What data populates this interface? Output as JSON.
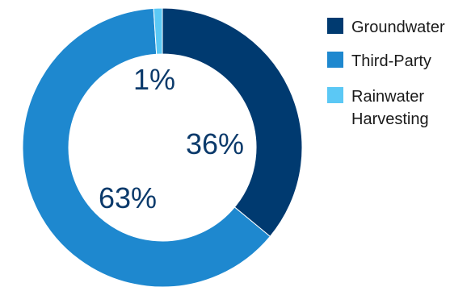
{
  "chart_data": {
    "type": "pie",
    "subtype": "donut",
    "title": "",
    "slices": [
      {
        "name": "Groundwater",
        "value": 36,
        "label": "36%",
        "color": "#003a70"
      },
      {
        "name": "Third-Party",
        "value": 63,
        "label": "63%",
        "color": "#1e88cf"
      },
      {
        "name": "Rainwater Harvesting",
        "value": 1,
        "label": "1%",
        "color": "#5bc8f5"
      }
    ],
    "legend": {
      "position": "right",
      "entries": [
        {
          "lines": [
            "Groundwater"
          ],
          "color": "#003a70"
        },
        {
          "lines": [
            "Third-Party"
          ],
          "color": "#1e88cf"
        },
        {
          "lines": [
            "Rainwater",
            "Harvesting"
          ],
          "color": "#5bc8f5"
        }
      ]
    }
  }
}
